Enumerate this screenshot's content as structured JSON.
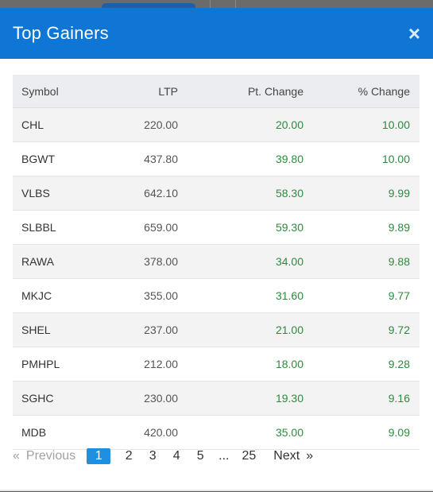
{
  "modal": {
    "title": "Top Gainers",
    "close_icon": "×"
  },
  "table": {
    "headers": {
      "symbol": "Symbol",
      "ltp": "LTP",
      "pt_change": "Pt. Change",
      "pct_change": "% Change"
    },
    "rows": [
      {
        "symbol": "CHL",
        "ltp": "220.00",
        "pt_change": "20.00",
        "pct_change": "10.00"
      },
      {
        "symbol": "BGWT",
        "ltp": "437.80",
        "pt_change": "39.80",
        "pct_change": "10.00"
      },
      {
        "symbol": "VLBS",
        "ltp": "642.10",
        "pt_change": "58.30",
        "pct_change": "9.99"
      },
      {
        "symbol": "SLBBL",
        "ltp": "659.00",
        "pt_change": "59.30",
        "pct_change": "9.89"
      },
      {
        "symbol": "RAWA",
        "ltp": "378.00",
        "pt_change": "34.00",
        "pct_change": "9.88"
      },
      {
        "symbol": "MKJC",
        "ltp": "355.00",
        "pt_change": "31.60",
        "pct_change": "9.77"
      },
      {
        "symbol": "SHEL",
        "ltp": "237.00",
        "pt_change": "21.00",
        "pct_change": "9.72"
      },
      {
        "symbol": "PMHPL",
        "ltp": "212.00",
        "pt_change": "18.00",
        "pct_change": "9.28"
      },
      {
        "symbol": "SGHC",
        "ltp": "230.00",
        "pt_change": "19.30",
        "pct_change": "9.16"
      },
      {
        "symbol": "MDB",
        "ltp": "420.00",
        "pt_change": "35.00",
        "pct_change": "9.09"
      }
    ]
  },
  "pagination": {
    "prev_arrow": "«",
    "prev_label": "Previous",
    "pages": [
      "1",
      "2",
      "3",
      "4",
      "5"
    ],
    "active_page": "1",
    "ellipsis": "...",
    "last_page": "25",
    "next_label": "Next",
    "next_arrow": "»"
  },
  "colors": {
    "header_bg": "#0f76d6",
    "positive": "#2e8b3e",
    "active_page": "#1f8fe0"
  }
}
